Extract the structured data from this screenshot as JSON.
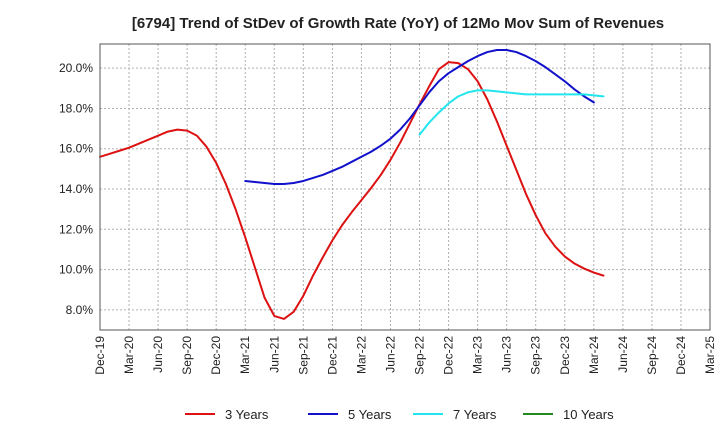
{
  "chart_data": {
    "type": "line",
    "title": "[6794]  Trend of StDev of Growth Rate (YoY) of 12Mo Mov Sum of Revenues",
    "xlabel": "",
    "ylabel": "",
    "ylim": [
      7.0,
      21.2
    ],
    "yticks": [
      8.0,
      10.0,
      12.0,
      14.0,
      16.0,
      18.0,
      20.0
    ],
    "ytick_labels": [
      "8.0%",
      "10.0%",
      "12.0%",
      "14.0%",
      "16.0%",
      "18.0%",
      "20.0%"
    ],
    "x_categories": [
      "Dec-19",
      "Mar-20",
      "Jun-20",
      "Sep-20",
      "Dec-20",
      "Mar-21",
      "Jun-21",
      "Sep-21",
      "Dec-21",
      "Mar-22",
      "Jun-22",
      "Sep-22",
      "Dec-22",
      "Mar-23",
      "Jun-23",
      "Sep-23",
      "Dec-23",
      "Mar-24",
      "Jun-24",
      "Sep-24",
      "Dec-24",
      "Mar-25"
    ],
    "grid": true,
    "legend_position": "bottom",
    "series": [
      {
        "name": "3 Years",
        "color": "#dd1111",
        "start_index": 0,
        "values": [
          15.6,
          15.75,
          15.9,
          16.05,
          16.25,
          16.45,
          16.65,
          16.85,
          16.95,
          16.9,
          16.65,
          16.1,
          15.3,
          14.25,
          13.0,
          11.6,
          10.1,
          8.6,
          7.7,
          7.55,
          7.9,
          8.7,
          9.7,
          10.6,
          11.45,
          12.2,
          12.85,
          13.45,
          14.05,
          14.7,
          15.45,
          16.3,
          17.25,
          18.2,
          19.1,
          19.95,
          20.3,
          20.25,
          19.95,
          19.35,
          18.45,
          17.35,
          16.15,
          14.95,
          13.75,
          12.7,
          11.8,
          11.15,
          10.65,
          10.3,
          10.05,
          9.85,
          9.7
        ]
      },
      {
        "name": "5 Years",
        "color": "#1111cc",
        "start_index": 15,
        "values": [
          14.4,
          14.35,
          14.3,
          14.25,
          14.25,
          14.3,
          14.4,
          14.55,
          14.7,
          14.9,
          15.1,
          15.35,
          15.6,
          15.85,
          16.15,
          16.5,
          16.95,
          17.5,
          18.15,
          18.8,
          19.35,
          19.75,
          20.05,
          20.35,
          20.6,
          20.8,
          20.9,
          20.9,
          20.8,
          20.6,
          20.35,
          20.05,
          19.7,
          19.35,
          18.95,
          18.6,
          18.3
        ]
      },
      {
        "name": "7 Years",
        "color": "#22e5ee",
        "start_index": 33,
        "values": [
          16.7,
          17.3,
          17.8,
          18.25,
          18.6,
          18.8,
          18.9,
          18.9,
          18.85,
          18.8,
          18.75,
          18.7,
          18.7,
          18.7,
          18.7,
          18.7,
          18.7,
          18.7,
          18.65,
          18.6
        ]
      },
      {
        "name": "10 Years",
        "color": "#228822",
        "start_index": 0,
        "values": []
      }
    ]
  }
}
